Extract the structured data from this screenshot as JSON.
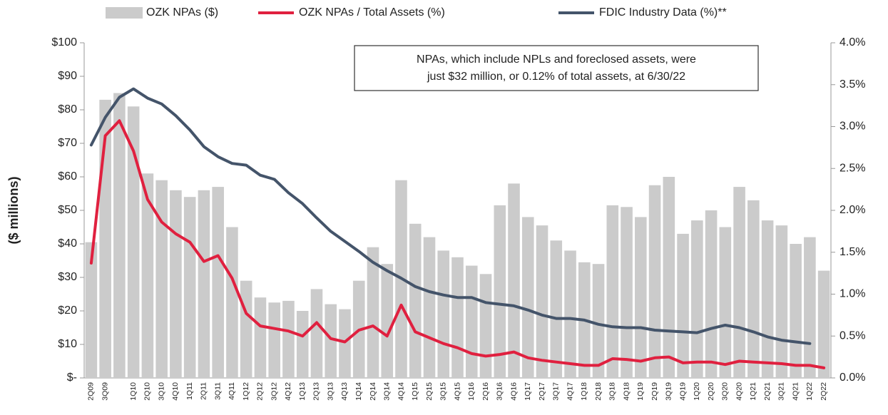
{
  "chart_data": {
    "type": "bar",
    "y_label": "($ millions)",
    "annotation": [
      "NPAs, which include NPLs and foreclosed assets, were",
      "just $32 million, or 0.12% of total assets, at 6/30/22"
    ],
    "categories": [
      "2Q09",
      "3Q09",
      null,
      "1Q10",
      "2Q10",
      "3Q10",
      "4Q10",
      "1Q11",
      "2Q11",
      "3Q11",
      "4Q11",
      "1Q12",
      "2Q12",
      "3Q12",
      "4Q12",
      "1Q13",
      "2Q13",
      "3Q13",
      "4Q13",
      "1Q14",
      "2Q14",
      "3Q14",
      "4Q14",
      "1Q15",
      "2Q15",
      "3Q15",
      "4Q15",
      "1Q16",
      "2Q16",
      "3Q16",
      "4Q16",
      "1Q17",
      "2Q17",
      "3Q17",
      "4Q17",
      "1Q18",
      "2Q18",
      "3Q18",
      "4Q18",
      "1Q19",
      "2Q19",
      "3Q19",
      "4Q19",
      "1Q20",
      "2Q20",
      "3Q20",
      "4Q20",
      "1Q21",
      "2Q21",
      "3Q21",
      "4Q21",
      "1Q22",
      "2Q22"
    ],
    "series": [
      {
        "name": "OZK NPAs ($)",
        "type": "bar",
        "axis": "y",
        "color": "#cbcbcb",
        "values": [
          40.5,
          83,
          85,
          81,
          61,
          59,
          56,
          54,
          56,
          57,
          45,
          29,
          24,
          22.5,
          23,
          20,
          26.5,
          22,
          20.5,
          29,
          39,
          34,
          59,
          46,
          42,
          38,
          36,
          33.5,
          31,
          51.5,
          58,
          48,
          45.5,
          41,
          38,
          34.5,
          34,
          51.5,
          51,
          48,
          57.5,
          60,
          43,
          47,
          50,
          45,
          57,
          53,
          47,
          45.5,
          40,
          42,
          32
        ]
      },
      {
        "name": "OZK NPAs / Total Assets (%)",
        "type": "line",
        "axis": "y2",
        "color": "#e0203f",
        "values": [
          1.37,
          2.89,
          3.07,
          2.71,
          2.13,
          1.86,
          1.72,
          1.62,
          1.39,
          1.46,
          1.19,
          0.77,
          0.62,
          0.59,
          0.56,
          0.5,
          0.66,
          0.47,
          0.43,
          0.57,
          0.62,
          0.5,
          0.87,
          0.55,
          0.48,
          0.41,
          0.36,
          0.29,
          0.26,
          0.28,
          0.31,
          0.24,
          0.21,
          0.19,
          0.17,
          0.15,
          0.15,
          0.23,
          0.22,
          0.2,
          0.24,
          0.25,
          0.18,
          0.19,
          0.19,
          0.16,
          0.2,
          0.19,
          0.18,
          0.17,
          0.15,
          0.15,
          0.12
        ]
      },
      {
        "name": "FDIC Industry Data (%)**",
        "type": "line",
        "axis": "y2",
        "color": "#44546a",
        "values": [
          2.78,
          3.11,
          3.35,
          3.45,
          3.34,
          3.27,
          3.13,
          2.96,
          2.76,
          2.64,
          2.56,
          2.54,
          2.42,
          2.37,
          2.21,
          2.08,
          1.91,
          1.75,
          1.63,
          1.51,
          1.38,
          1.28,
          1.19,
          1.09,
          1.03,
          0.99,
          0.96,
          0.96,
          0.9,
          0.88,
          0.86,
          0.81,
          0.75,
          0.71,
          0.71,
          0.69,
          0.64,
          0.61,
          0.6,
          0.6,
          0.57,
          0.56,
          0.55,
          0.54,
          0.59,
          0.63,
          0.6,
          0.55,
          0.49,
          0.45,
          0.43,
          0.41,
          null
        ]
      }
    ],
    "ylim": [
      0,
      100
    ],
    "yticks": [
      {
        "value": 0,
        "label": "$-"
      },
      {
        "value": 10,
        "label": "$10"
      },
      {
        "value": 20,
        "label": "$20"
      },
      {
        "value": 30,
        "label": "$30"
      },
      {
        "value": 40,
        "label": "$40"
      },
      {
        "value": 50,
        "label": "$50"
      },
      {
        "value": 60,
        "label": "$60"
      },
      {
        "value": 70,
        "label": "$70"
      },
      {
        "value": 80,
        "label": "$80"
      },
      {
        "value": 90,
        "label": "$90"
      },
      {
        "value": 100,
        "label": "$100"
      }
    ],
    "y2lim": [
      0,
      4
    ],
    "y2ticks": [
      {
        "value": 0,
        "label": "0.0%"
      },
      {
        "value": 0.5,
        "label": "0.5%"
      },
      {
        "value": 1,
        "label": "1.0%"
      },
      {
        "value": 1.5,
        "label": "1.5%"
      },
      {
        "value": 2,
        "label": "2.0%"
      },
      {
        "value": 2.5,
        "label": "2.5%"
      },
      {
        "value": 3,
        "label": "3.0%"
      },
      {
        "value": 3.5,
        "label": "3.5%"
      },
      {
        "value": 4,
        "label": "4.0%"
      }
    ],
    "grid": false,
    "legend": "top"
  }
}
